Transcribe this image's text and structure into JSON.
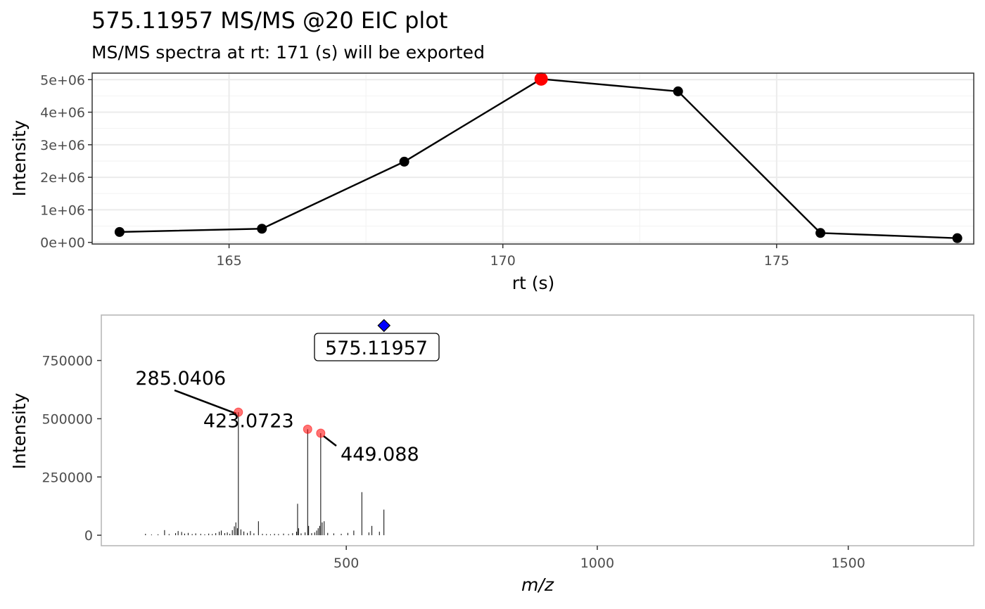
{
  "chart_data": [
    {
      "type": "line",
      "title": "575.11957 MS/MS @20 EIC plot",
      "subtitle": "MS/MS spectra at rt: 171 (s) will be exported",
      "xlabel": "rt (s)",
      "ylabel": "Intensity",
      "xlim": [
        162.5,
        178.6
      ],
      "ylim": [
        -50000,
        5200000
      ],
      "xticks": [
        165,
        170,
        175
      ],
      "xtick_labels": [
        "165",
        "170",
        "175"
      ],
      "yticks": [
        0,
        1000000,
        2000000,
        3000000,
        4000000,
        5000000
      ],
      "ytick_labels": [
        "0e+00",
        "1e+06",
        "2e+06",
        "3e+06",
        "4e+06",
        "5e+06"
      ],
      "grid": true,
      "series": [
        {
          "x": [
            163.0,
            165.6,
            168.2,
            170.7,
            173.2,
            175.8,
            178.3
          ],
          "y": [
            320000,
            420000,
            2480000,
            5020000,
            4640000,
            290000,
            130000
          ]
        }
      ],
      "highlight": {
        "x": 170.7,
        "y": 5020000,
        "color": "#ff0000"
      }
    },
    {
      "type": "bar",
      "xlabel": "m/z",
      "ylabel": "Intensity",
      "xlim": [
        12,
        1750
      ],
      "ylim": [
        -45000,
        945000
      ],
      "xticks": [
        500,
        1000,
        1500
      ],
      "xtick_labels": [
        "500",
        "1000",
        "1500"
      ],
      "yticks": [
        0,
        250000,
        500000,
        750000
      ],
      "ytick_labels": [
        "0",
        "250000",
        "500000",
        "750000"
      ],
      "grid": false,
      "precursor": {
        "mz": 575.11957,
        "intensity": 900000,
        "label": "575.11957",
        "color": "#0000ff"
      },
      "annotations": [
        {
          "mz": 285.0406,
          "intensity": 528000,
          "label": "285.0406"
        },
        {
          "mz": 423.0723,
          "intensity": 455000,
          "label": "423.0723"
        },
        {
          "mz": 449.088,
          "intensity": 438000,
          "label": "449.088"
        }
      ],
      "peaks": [
        [
          100,
          6000
        ],
        [
          112,
          3000
        ],
        [
          125,
          4000
        ],
        [
          138,
          22000
        ],
        [
          147,
          5000
        ],
        [
          160,
          9000
        ],
        [
          165,
          18000
        ],
        [
          172,
          14000
        ],
        [
          178,
          7000
        ],
        [
          185,
          10000
        ],
        [
          193,
          5000
        ],
        [
          200,
          8000
        ],
        [
          210,
          6000
        ],
        [
          218,
          4000
        ],
        [
          226,
          7000
        ],
        [
          233,
          5000
        ],
        [
          240,
          9000
        ],
        [
          247,
          15000
        ],
        [
          251,
          20000
        ],
        [
          258,
          9000
        ],
        [
          263,
          12000
        ],
        [
          268,
          6000
        ],
        [
          273,
          22000
        ],
        [
          277,
          38000
        ],
        [
          280,
          55000
        ],
        [
          283,
          30000
        ],
        [
          285.0406,
          528000
        ],
        [
          290,
          25000
        ],
        [
          296,
          16000
        ],
        [
          303,
          10000
        ],
        [
          309,
          18000
        ],
        [
          316,
          8000
        ],
        [
          325,
          60000
        ],
        [
          333,
          6000
        ],
        [
          341,
          5000
        ],
        [
          349,
          4000
        ],
        [
          357,
          6000
        ],
        [
          365,
          5000
        ],
        [
          375,
          7000
        ],
        [
          385,
          5000
        ],
        [
          393,
          9000
        ],
        [
          401,
          15000
        ],
        [
          403,
          135000
        ],
        [
          405,
          30000
        ],
        [
          410,
          8000
        ],
        [
          418,
          12000
        ],
        [
          423.0723,
          455000
        ],
        [
          425,
          40000
        ],
        [
          431,
          9000
        ],
        [
          437,
          12000
        ],
        [
          441,
          20000
        ],
        [
          444,
          30000
        ],
        [
          447,
          40000
        ],
        [
          449.088,
          438000
        ],
        [
          452,
          55000
        ],
        [
          456,
          60000
        ],
        [
          463,
          10000
        ],
        [
          475,
          8000
        ],
        [
          490,
          6000
        ],
        [
          503,
          10000
        ],
        [
          515,
          20000
        ],
        [
          531,
          185000
        ],
        [
          545,
          12000
        ],
        [
          551,
          40000
        ],
        [
          566,
          15000
        ],
        [
          575,
          110000
        ]
      ]
    }
  ]
}
